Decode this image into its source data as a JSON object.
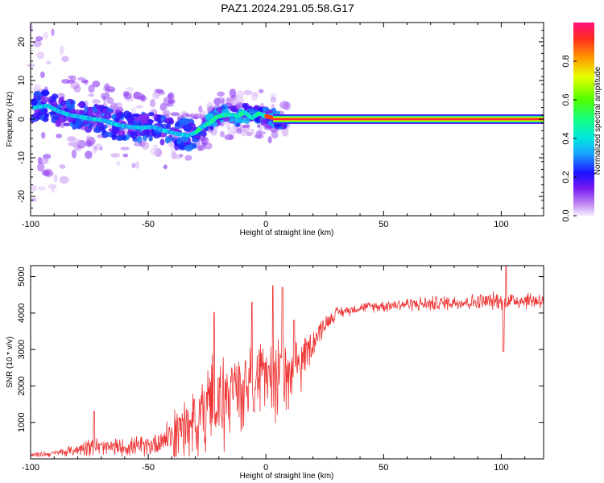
{
  "title": "PAZ1.2024.291.05.58.G17",
  "chart_data": [
    {
      "type": "heatmap",
      "xlabel": "Height of straight line (km)",
      "ylabel": "Frequency (Hz)",
      "xlim": [
        -100,
        118
      ],
      "ylim": [
        -25,
        25
      ],
      "xticks": [
        -100,
        -50,
        0,
        50,
        100
      ],
      "yticks": [
        -20,
        -10,
        0,
        10,
        20
      ],
      "colorbar": {
        "label": "Normalized spectral amplitude",
        "ticks": [
          "0.0",
          "0.2",
          "0.4",
          "0.6",
          "0.8"
        ],
        "range": [
          0,
          1
        ]
      },
      "ridge": {
        "x": [
          -98,
          -93,
          -88,
          -83,
          -78,
          -73,
          -68,
          -63,
          -58,
          -53,
          -48,
          -43,
          -38,
          -33,
          -30,
          -27,
          -24,
          -21,
          -18,
          -15,
          -12,
          -9,
          -6,
          -3,
          0,
          3,
          6,
          10,
          20,
          40,
          60,
          80,
          100,
          118
        ],
        "y": [
          3,
          3.5,
          2,
          1,
          0.5,
          0,
          -0.5,
          -1.5,
          -2,
          -2.2,
          -2,
          -3,
          -3.8,
          -4.2,
          -3.5,
          -2,
          -1,
          0.5,
          1,
          1.2,
          0.8,
          1.8,
          0.3,
          1.5,
          0.8,
          0.3,
          0,
          0,
          0,
          0,
          0,
          0,
          0,
          0
        ]
      }
    },
    {
      "type": "line",
      "xlabel": "Height of straight line (km)",
      "ylabel": "SNR (10 * v/v)",
      "xlim": [
        -100,
        118
      ],
      "ylim": [
        0,
        5300
      ],
      "xticks": [
        -100,
        -50,
        0,
        50,
        100
      ],
      "yticks": [
        1000,
        2000,
        3000,
        4000,
        5000
      ],
      "color": "#ee3333",
      "envelope": {
        "x": [
          -100,
          -90,
          -80,
          -75,
          -70,
          -60,
          -50,
          -45,
          -40,
          -35,
          -30,
          -25,
          -22,
          -20,
          -15,
          -10,
          -5,
          0,
          5,
          10,
          15,
          20,
          25,
          30,
          40,
          50,
          60,
          70,
          80,
          90,
          100,
          110,
          118
        ],
        "mean": [
          100,
          150,
          250,
          400,
          300,
          320,
          350,
          500,
          700,
          900,
          1200,
          1500,
          1800,
          1600,
          1900,
          2200,
          2400,
          2500,
          2400,
          2200,
          2700,
          3200,
          3700,
          4000,
          4150,
          4200,
          4250,
          4250,
          4300,
          4300,
          4350,
          4350,
          4350
        ],
        "amplitude": [
          80,
          100,
          200,
          350,
          300,
          300,
          350,
          450,
          600,
          800,
          1000,
          1200,
          1500,
          1300,
          1200,
          1100,
          1000,
          900,
          1200,
          900,
          700,
          500,
          300,
          200,
          150,
          200,
          220,
          250,
          250,
          280,
          300,
          300,
          300
        ]
      },
      "spikes": [
        {
          "x": -73,
          "y": 1300
        },
        {
          "x": -22,
          "y": 4020
        },
        {
          "x": -6,
          "y": 4300
        },
        {
          "x": 3,
          "y": 4750
        },
        {
          "x": 7,
          "y": 4700
        },
        {
          "x": 12,
          "y": 3800
        },
        {
          "x": 102,
          "y": 5300
        },
        {
          "x": 101,
          "y": 2950
        }
      ]
    }
  ]
}
